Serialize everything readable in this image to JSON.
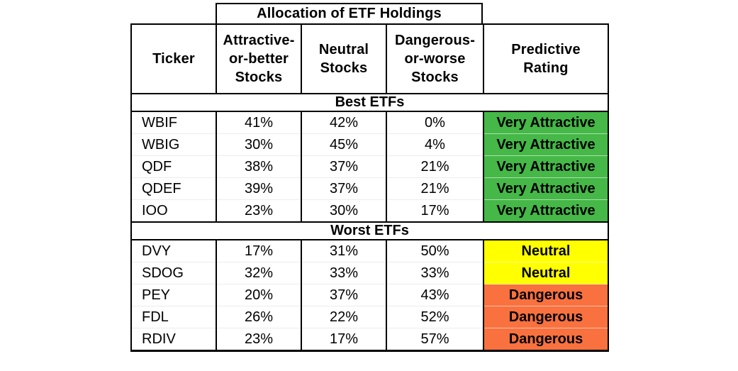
{
  "chart_data": {
    "type": "table",
    "title": "Allocation of ETF Holdings",
    "columns": [
      "Ticker",
      "Attractive-or-better Stocks",
      "Neutral Stocks",
      "Dangerous-or-worse Stocks",
      "Predictive Rating"
    ],
    "rating_colors": {
      "Very Attractive": "#45B848",
      "Neutral": "#FFFF00",
      "Dangerous": "#F9713E"
    },
    "sections": [
      {
        "label": "Best ETFs",
        "rows": [
          {
            "ticker": "WBIF",
            "attractive_or_better": "41%",
            "neutral": "42%",
            "dangerous_or_worse": "0%",
            "rating": "Very Attractive"
          },
          {
            "ticker": "WBIG",
            "attractive_or_better": "30%",
            "neutral": "45%",
            "dangerous_or_worse": "4%",
            "rating": "Very Attractive"
          },
          {
            "ticker": "QDF",
            "attractive_or_better": "38%",
            "neutral": "37%",
            "dangerous_or_worse": "21%",
            "rating": "Very Attractive"
          },
          {
            "ticker": "QDEF",
            "attractive_or_better": "39%",
            "neutral": "37%",
            "dangerous_or_worse": "21%",
            "rating": "Very Attractive"
          },
          {
            "ticker": "IOO",
            "attractive_or_better": "23%",
            "neutral": "30%",
            "dangerous_or_worse": "17%",
            "rating": "Very Attractive"
          }
        ]
      },
      {
        "label": "Worst ETFs",
        "rows": [
          {
            "ticker": "DVY",
            "attractive_or_better": "17%",
            "neutral": "31%",
            "dangerous_or_worse": "50%",
            "rating": "Neutral"
          },
          {
            "ticker": "SDOG",
            "attractive_or_better": "32%",
            "neutral": "33%",
            "dangerous_or_worse": "33%",
            "rating": "Neutral"
          },
          {
            "ticker": "PEY",
            "attractive_or_better": "20%",
            "neutral": "37%",
            "dangerous_or_worse": "43%",
            "rating": "Dangerous"
          },
          {
            "ticker": "FDL",
            "attractive_or_better": "26%",
            "neutral": "22%",
            "dangerous_or_worse": "52%",
            "rating": "Dangerous"
          },
          {
            "ticker": "RDIV",
            "attractive_or_better": "23%",
            "neutral": "17%",
            "dangerous_or_worse": "57%",
            "rating": "Dangerous"
          }
        ]
      }
    ]
  },
  "table": {
    "top_header": "Allocation of ETF Holdings",
    "columns_display": [
      "Ticker",
      "Attractive-\nor-better\nStocks",
      "Neutral\nStocks",
      "Dangerous-\nor-worse\nStocks",
      "Predictive\nRating"
    ]
  }
}
